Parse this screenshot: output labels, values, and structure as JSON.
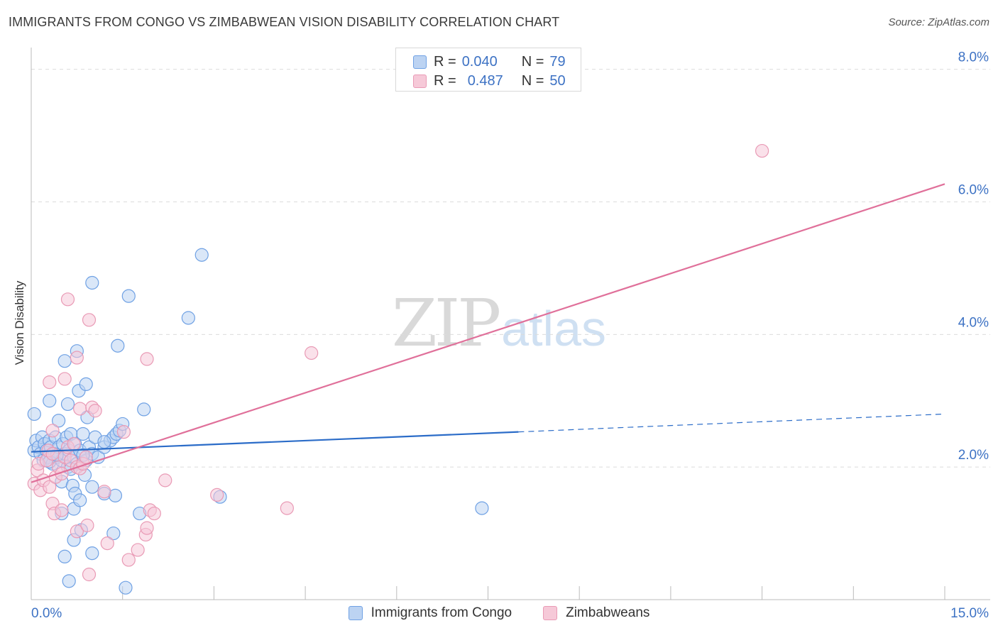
{
  "title": "IMMIGRANTS FROM CONGO VS ZIMBABWEAN VISION DISABILITY CORRELATION CHART",
  "source": "Source: ZipAtlas.com",
  "watermark": {
    "zip": "ZIP",
    "atlas": "atlas"
  },
  "legend": {
    "rows": [
      {
        "r_label": "R =",
        "r_value": "0.040",
        "n_label": "N =",
        "n_value": "79"
      },
      {
        "r_label": "R =",
        "r_value": "0.487",
        "n_label": "N =",
        "n_value": "50"
      }
    ]
  },
  "chart_data": {
    "type": "scatter",
    "title": "IMMIGRANTS FROM CONGO VS ZIMBABWEAN VISION DISABILITY CORRELATION CHART",
    "xlabel": "",
    "ylabel": "Vision Disability",
    "xlim": [
      0,
      15
    ],
    "ylim": [
      0,
      8.2
    ],
    "x_tick_labels": [
      {
        "value": 0,
        "label": "0.0%"
      },
      {
        "value": 15,
        "label": "15.0%"
      }
    ],
    "y_tick_labels": [
      {
        "value": 2,
        "label": "2.0%"
      },
      {
        "value": 4,
        "label": "4.0%"
      },
      {
        "value": 6,
        "label": "6.0%"
      },
      {
        "value": 8,
        "label": "8.0%"
      }
    ],
    "x_minor_ticks": [
      1.5,
      3,
      4.5,
      6,
      7.5,
      9,
      10.5,
      12,
      13.5
    ],
    "grid": true,
    "legend_position": "bottom",
    "series": [
      {
        "name": "Immigrants from Congo",
        "color": "#6fa1e4",
        "fill": "#bcd3f2",
        "trend": {
          "x0": 0,
          "y0": 2.23,
          "x1": 8.0,
          "y1": 2.53,
          "dashed_to_x": 15,
          "dashed_to_y": 2.8,
          "color": "#2b6cc8"
        },
        "points": [
          [
            0.05,
            2.25
          ],
          [
            0.08,
            2.4
          ],
          [
            0.12,
            2.3
          ],
          [
            0.15,
            2.2
          ],
          [
            0.18,
            2.45
          ],
          [
            0.2,
            2.1
          ],
          [
            0.22,
            2.35
          ],
          [
            0.25,
            2.25
          ],
          [
            0.28,
            2.15
          ],
          [
            0.3,
            2.4
          ],
          [
            0.32,
            2.3
          ],
          [
            0.35,
            2.05
          ],
          [
            0.38,
            2.2
          ],
          [
            0.4,
            2.45
          ],
          [
            0.42,
            2.15
          ],
          [
            0.45,
            2.3
          ],
          [
            0.5,
            2.1
          ],
          [
            0.52,
            2.35
          ],
          [
            0.55,
            2.2
          ],
          [
            0.58,
            2.45
          ],
          [
            0.6,
            2.0
          ],
          [
            0.62,
            2.25
          ],
          [
            0.65,
            2.5
          ],
          [
            0.7,
            2.15
          ],
          [
            0.72,
            2.35
          ],
          [
            0.75,
            2.05
          ],
          [
            0.8,
            2.25
          ],
          [
            0.85,
            2.5
          ],
          [
            0.9,
            2.1
          ],
          [
            0.95,
            2.3
          ],
          [
            1.0,
            2.2
          ],
          [
            1.05,
            2.45
          ],
          [
            1.1,
            2.15
          ],
          [
            1.2,
            2.3
          ],
          [
            1.3,
            2.4
          ],
          [
            1.35,
            2.45
          ],
          [
            1.4,
            2.5
          ],
          [
            1.45,
            2.55
          ],
          [
            1.5,
            2.65
          ],
          [
            0.05,
            2.8
          ],
          [
            0.3,
            3.0
          ],
          [
            0.45,
            2.7
          ],
          [
            0.55,
            3.6
          ],
          [
            0.6,
            2.95
          ],
          [
            0.75,
            3.75
          ],
          [
            0.78,
            3.15
          ],
          [
            0.9,
            3.25
          ],
          [
            0.92,
            2.75
          ],
          [
            1.0,
            4.78
          ],
          [
            1.42,
            3.83
          ],
          [
            1.6,
            4.58
          ],
          [
            1.85,
            2.87
          ],
          [
            2.58,
            4.25
          ],
          [
            2.8,
            5.2
          ],
          [
            0.5,
            1.78
          ],
          [
            0.68,
            1.72
          ],
          [
            0.72,
            1.6
          ],
          [
            0.7,
            1.37
          ],
          [
            0.8,
            1.5
          ],
          [
            0.88,
            1.88
          ],
          [
            1.0,
            1.7
          ],
          [
            1.2,
            1.6
          ],
          [
            1.38,
            1.57
          ],
          [
            1.78,
            1.3
          ],
          [
            0.5,
            1.3
          ],
          [
            0.7,
            0.9
          ],
          [
            0.82,
            1.05
          ],
          [
            1.0,
            0.7
          ],
          [
            1.35,
            1.0
          ],
          [
            0.55,
            0.65
          ],
          [
            0.62,
            0.28
          ],
          [
            1.55,
            0.18
          ],
          [
            3.1,
            1.55
          ],
          [
            7.4,
            1.38
          ],
          [
            0.3,
            2.08
          ],
          [
            0.42,
            2.18
          ],
          [
            0.65,
            1.97
          ],
          [
            0.85,
            2.18
          ],
          [
            1.2,
            2.38
          ]
        ]
      },
      {
        "name": "Zimbabweans",
        "color": "#e99ab5",
        "fill": "#f6c9d8",
        "trend": {
          "x0": 0,
          "y0": 1.77,
          "x1": 15,
          "y1": 6.27,
          "color": "#e0709a"
        },
        "points": [
          [
            0.05,
            1.75
          ],
          [
            0.1,
            1.95
          ],
          [
            0.12,
            2.05
          ],
          [
            0.15,
            1.65
          ],
          [
            0.2,
            1.8
          ],
          [
            0.25,
            2.1
          ],
          [
            0.28,
            2.25
          ],
          [
            0.3,
            1.7
          ],
          [
            0.35,
            2.2
          ],
          [
            0.4,
            1.85
          ],
          [
            0.45,
            2.0
          ],
          [
            0.5,
            1.9
          ],
          [
            0.55,
            2.15
          ],
          [
            0.6,
            2.3
          ],
          [
            0.65,
            2.1
          ],
          [
            0.7,
            2.35
          ],
          [
            0.75,
            2.0
          ],
          [
            0.8,
            1.98
          ],
          [
            0.85,
            2.05
          ],
          [
            0.9,
            2.15
          ],
          [
            0.35,
            2.55
          ],
          [
            0.3,
            3.28
          ],
          [
            0.55,
            3.33
          ],
          [
            0.6,
            4.53
          ],
          [
            0.75,
            3.65
          ],
          [
            0.8,
            2.88
          ],
          [
            0.95,
            4.22
          ],
          [
            1.0,
            2.9
          ],
          [
            1.05,
            2.85
          ],
          [
            1.52,
            2.53
          ],
          [
            1.9,
            3.63
          ],
          [
            4.6,
            3.72
          ],
          [
            12.0,
            6.77
          ],
          [
            0.35,
            1.45
          ],
          [
            0.38,
            1.3
          ],
          [
            0.5,
            1.35
          ],
          [
            0.75,
            1.03
          ],
          [
            0.92,
            1.12
          ],
          [
            1.2,
            1.63
          ],
          [
            1.25,
            0.85
          ],
          [
            1.6,
            0.6
          ],
          [
            1.75,
            0.75
          ],
          [
            1.88,
            0.98
          ],
          [
            1.9,
            1.08
          ],
          [
            1.95,
            1.35
          ],
          [
            2.02,
            1.3
          ],
          [
            2.2,
            1.8
          ],
          [
            3.05,
            1.58
          ],
          [
            4.2,
            1.38
          ],
          [
            0.95,
            0.38
          ]
        ]
      }
    ]
  }
}
